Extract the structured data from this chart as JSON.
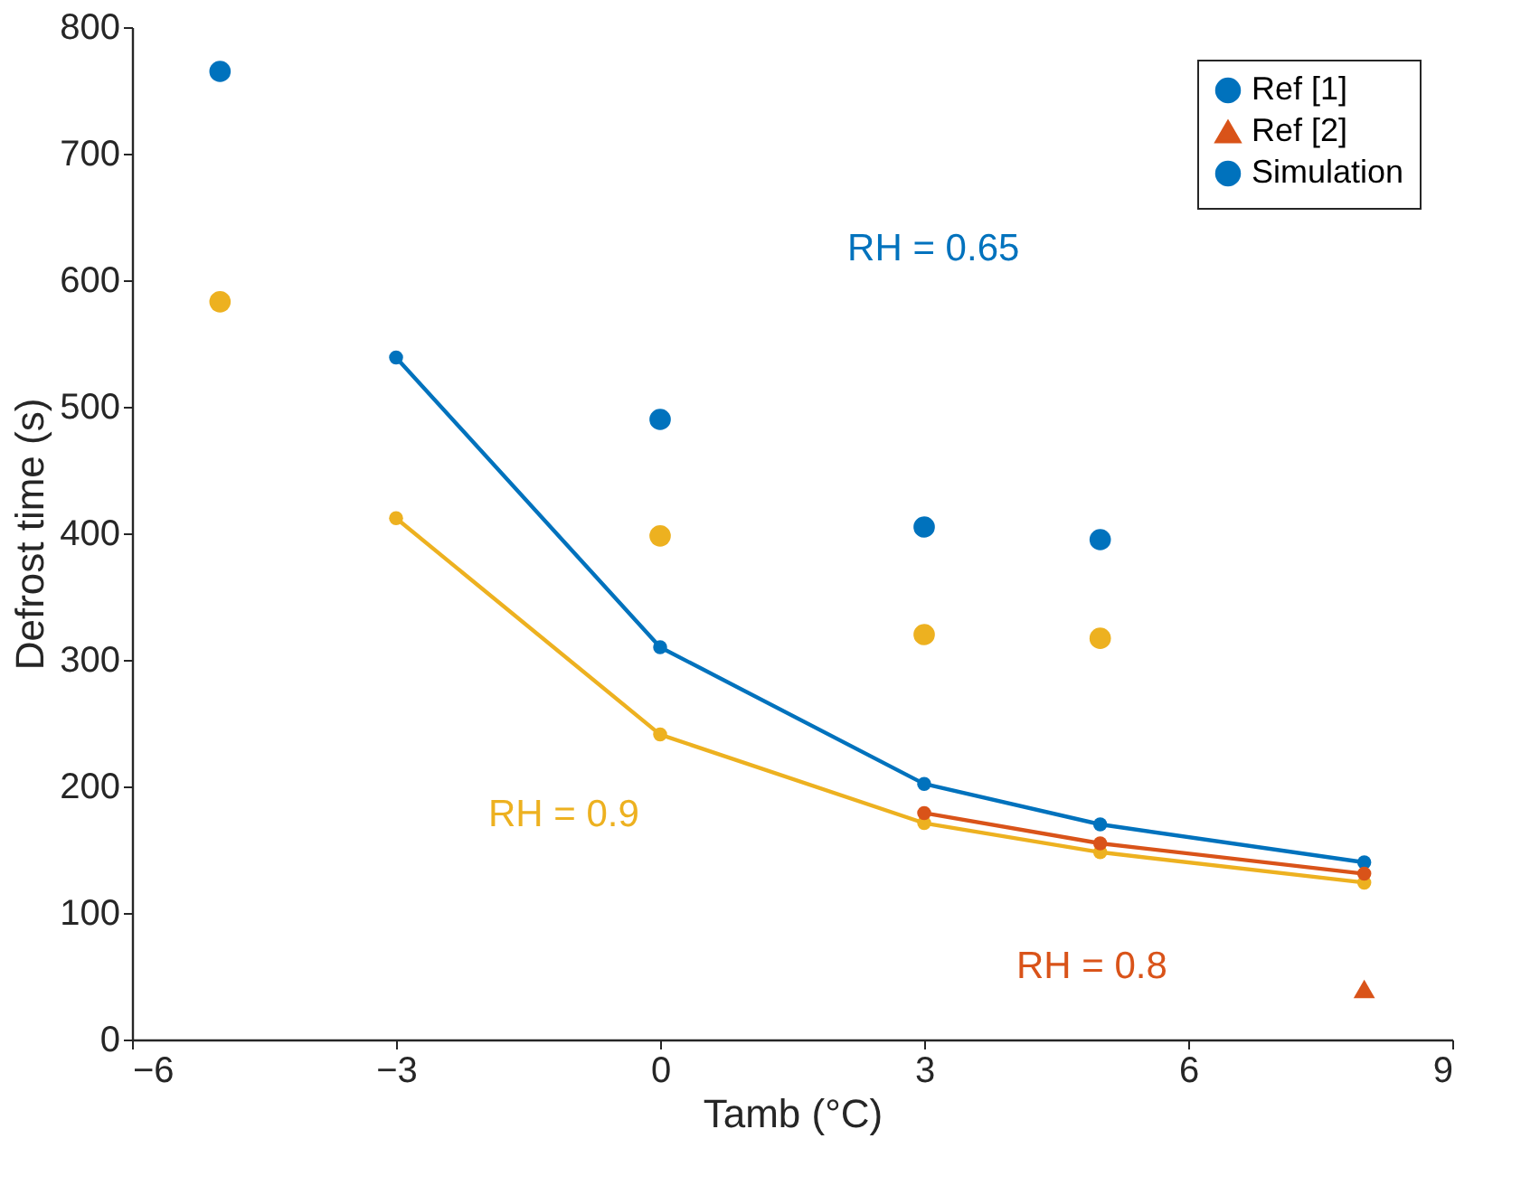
{
  "chart_data": {
    "type": "scatter",
    "xlabel": "Tamb (°C)",
    "ylabel": "Defrost time (s)",
    "xlim": [
      -6,
      9
    ],
    "xticks": [
      -6,
      -3,
      0,
      3,
      6,
      9
    ],
    "ylim": [
      0,
      800
    ],
    "yticks": [
      0,
      100,
      200,
      300,
      400,
      500,
      600,
      700,
      800
    ],
    "grid": false,
    "legend": "top right",
    "series": [
      {
        "name": "Ref [1]",
        "marker": "circle",
        "x": [
          -5,
          0,
          3,
          5,
          -5,
          0,
          3,
          5
        ],
        "values": [
          765,
          490,
          405,
          395,
          583,
          398,
          320,
          317
        ],
        "colors": [
          "#0072bd",
          "#0072bd",
          "#0072bd",
          "#0072bd",
          "#edb120",
          "#edb120",
          "#edb120",
          "#edb120"
        ]
      },
      {
        "name": "Ref [2]",
        "marker": "triangle",
        "x": [
          8
        ],
        "values": [
          40
        ],
        "color": "#d95319"
      },
      {
        "name": "Simulation",
        "type": "line",
        "marker": "circle",
        "color": "#0072bd",
        "x": [
          -3,
          0,
          3,
          5,
          8
        ],
        "values": [
          539,
          310,
          202,
          170,
          140
        ]
      },
      {
        "type": "line",
        "marker": "circle",
        "color": "#edb120",
        "x": [
          -3,
          0,
          3,
          5,
          8
        ],
        "values": [
          412,
          241,
          171,
          148,
          124
        ]
      },
      {
        "type": "line",
        "marker": "circle",
        "color": "#d95319",
        "x": [
          3,
          5,
          8
        ],
        "values": [
          179,
          155,
          131
        ]
      }
    ],
    "annotations": [
      "RH = 0.65",
      "RH = 0.9",
      "RH = 0.8"
    ]
  }
}
